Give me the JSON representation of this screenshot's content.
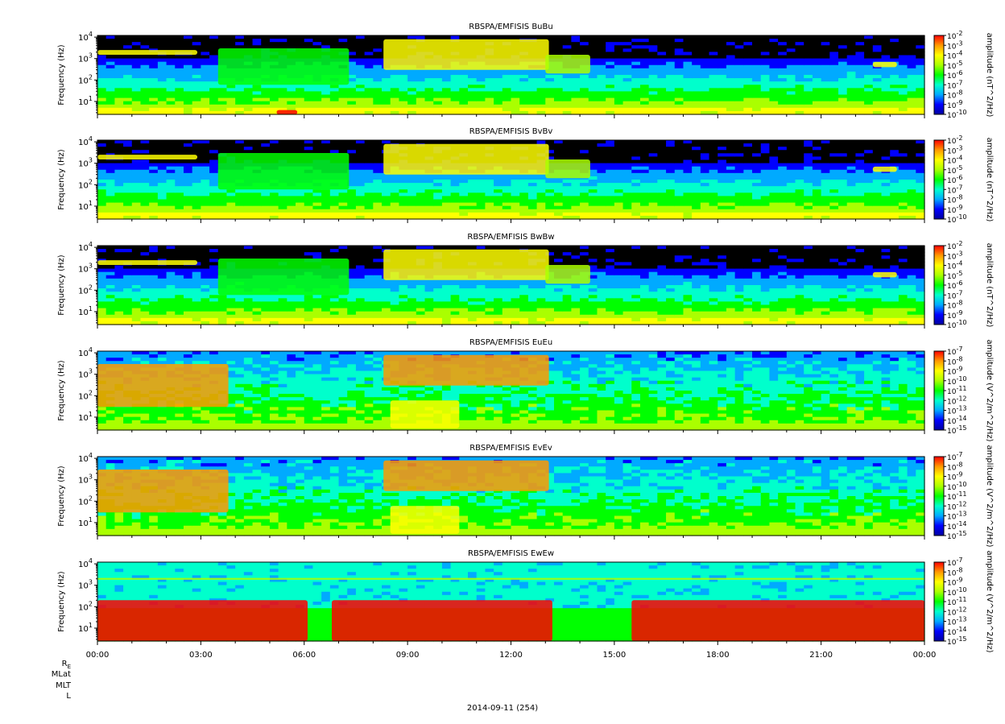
{
  "chart_data": [
    {
      "type": "heatmap",
      "title": "RBSPA/EMFISIS  BuBu",
      "ylabel": "Frequency (Hz)",
      "yscale": "log",
      "ylim": [
        2.5,
        12000
      ],
      "yticks": [
        "10^1",
        "10^2",
        "10^3",
        "10^4"
      ],
      "colorbar_label": "amplitude (nT^2/Hz)",
      "colorbar_ticks": [
        "10^-2",
        "10^-3",
        "10^-4",
        "10^-5",
        "10^-6",
        "10^-7",
        "10^-8",
        "10^-9",
        "10^-10"
      ],
      "colorbar_range_exp": [
        -10,
        -2
      ],
      "features": [
        {
          "t": [
            0.0,
            2.9
          ],
          "f": [
            1500,
            2500
          ],
          "level": 0.72
        },
        {
          "t": [
            3.5,
            7.3
          ],
          "f": [
            60,
            3000
          ],
          "level": 0.55
        },
        {
          "t": [
            8.3,
            13.1
          ],
          "f": [
            300,
            8000
          ],
          "level": 0.75
        },
        {
          "t": [
            13.0,
            14.3
          ],
          "f": [
            200,
            1500
          ],
          "level": 0.62
        },
        {
          "t": [
            22.5,
            23.2
          ],
          "f": [
            400,
            700
          ],
          "level": 0.72
        },
        {
          "t": [
            5.2,
            5.8
          ],
          "f": [
            2.5,
            4
          ],
          "level": 0.95
        }
      ]
    },
    {
      "type": "heatmap",
      "title": "RBSPA/EMFISIS  BvBv",
      "ylabel": "Frequency (Hz)",
      "yscale": "log",
      "ylim": [
        2.5,
        12000
      ],
      "yticks": [
        "10^1",
        "10^2",
        "10^3",
        "10^4"
      ],
      "colorbar_label": "amplitude (nT^2/Hz)",
      "colorbar_ticks": [
        "10^-2",
        "10^-3",
        "10^-4",
        "10^-5",
        "10^-6",
        "10^-7",
        "10^-8",
        "10^-9",
        "10^-10"
      ],
      "colorbar_range_exp": [
        -10,
        -2
      ],
      "features": [
        {
          "t": [
            0.0,
            2.9
          ],
          "f": [
            1500,
            2500
          ],
          "level": 0.72
        },
        {
          "t": [
            3.5,
            7.3
          ],
          "f": [
            60,
            3000
          ],
          "level": 0.55
        },
        {
          "t": [
            8.3,
            13.1
          ],
          "f": [
            300,
            8000
          ],
          "level": 0.75
        },
        {
          "t": [
            13.0,
            14.3
          ],
          "f": [
            200,
            1500
          ],
          "level": 0.62
        },
        {
          "t": [
            22.5,
            23.2
          ],
          "f": [
            400,
            700
          ],
          "level": 0.72
        }
      ]
    },
    {
      "type": "heatmap",
      "title": "RBSPA/EMFISIS  BwBw",
      "ylabel": "Frequency (Hz)",
      "yscale": "log",
      "ylim": [
        2.5,
        12000
      ],
      "yticks": [
        "10^1",
        "10^2",
        "10^3",
        "10^4"
      ],
      "colorbar_label": "amplitude (nT^2/Hz)",
      "colorbar_ticks": [
        "10^-2",
        "10^-3",
        "10^-4",
        "10^-5",
        "10^-6",
        "10^-7",
        "10^-8",
        "10^-9",
        "10^-10"
      ],
      "colorbar_range_exp": [
        -10,
        -2
      ],
      "features": [
        {
          "t": [
            0.0,
            2.9
          ],
          "f": [
            1500,
            2500
          ],
          "level": 0.72
        },
        {
          "t": [
            3.5,
            7.3
          ],
          "f": [
            60,
            3000
          ],
          "level": 0.55
        },
        {
          "t": [
            8.3,
            13.1
          ],
          "f": [
            300,
            8000
          ],
          "level": 0.75
        },
        {
          "t": [
            13.0,
            14.3
          ],
          "f": [
            200,
            1500
          ],
          "level": 0.62
        },
        {
          "t": [
            22.5,
            23.2
          ],
          "f": [
            400,
            700
          ],
          "level": 0.72
        }
      ]
    },
    {
      "type": "heatmap",
      "title": "RBSPA/EMFISIS  EuEu",
      "ylabel": "Frequency (Hz)",
      "yscale": "log",
      "ylim": [
        2.5,
        12000
      ],
      "yticks": [
        "10^1",
        "10^2",
        "10^3",
        "10^4"
      ],
      "colorbar_label": "amplitude (V^2/m^2/Hz)",
      "colorbar_ticks": [
        "10^-7",
        "10^-8",
        "10^-9",
        "10^-10",
        "10^-11",
        "10^-12",
        "10^-13",
        "10^-14",
        "10^-15"
      ],
      "colorbar_range_exp": [
        -15,
        -7
      ],
      "features": [
        {
          "t": [
            0.0,
            3.8
          ],
          "f": [
            30,
            3000
          ],
          "level": 0.8
        },
        {
          "t": [
            8.3,
            13.1
          ],
          "f": [
            300,
            8000
          ],
          "level": 0.85
        },
        {
          "t": [
            8.5,
            10.5
          ],
          "f": [
            3,
            60
          ],
          "level": 0.75
        }
      ]
    },
    {
      "type": "heatmap",
      "title": "RBSPA/EMFISIS  EvEv",
      "ylabel": "Frequency (Hz)",
      "yscale": "log",
      "ylim": [
        2.5,
        12000
      ],
      "yticks": [
        "10^1",
        "10^2",
        "10^3",
        "10^4"
      ],
      "colorbar_label": "amplitude (V^2/m^2/Hz)",
      "colorbar_ticks": [
        "10^-7",
        "10^-8",
        "10^-9",
        "10^-10",
        "10^-11",
        "10^-12",
        "10^-13",
        "10^-14",
        "10^-15"
      ],
      "colorbar_range_exp": [
        -15,
        -7
      ],
      "features": [
        {
          "t": [
            0.0,
            3.8
          ],
          "f": [
            30,
            3000
          ],
          "level": 0.8
        },
        {
          "t": [
            8.3,
            13.1
          ],
          "f": [
            300,
            8000
          ],
          "level": 0.85
        },
        {
          "t": [
            8.5,
            10.5
          ],
          "f": [
            3,
            60
          ],
          "level": 0.75
        }
      ]
    },
    {
      "type": "heatmap",
      "title": "RBSPA/EMFISIS  EwEw",
      "ylabel": "Frequency (Hz)",
      "yscale": "log",
      "ylim": [
        2.5,
        12000
      ],
      "yticks": [
        "10^1",
        "10^2",
        "10^3",
        "10^4"
      ],
      "colorbar_label": "amplitude (V^2/m^2/Hz)",
      "colorbar_ticks": [
        "10^-7",
        "10^-8",
        "10^-9",
        "10^-10",
        "10^-11",
        "10^-12",
        "10^-13",
        "10^-14",
        "10^-15"
      ],
      "colorbar_range_exp": [
        -15,
        -7
      ],
      "features": [
        {
          "t": [
            0.0,
            6.1
          ],
          "f": [
            2.5,
            200
          ],
          "level": 0.97
        },
        {
          "t": [
            6.8,
            13.2
          ],
          "f": [
            2.5,
            200
          ],
          "level": 0.97
        },
        {
          "t": [
            15.5,
            24.0
          ],
          "f": [
            2.5,
            200
          ],
          "level": 0.97
        },
        {
          "t": [
            0.0,
            24.0
          ],
          "f": [
            1800,
            2200
          ],
          "level": 0.65
        }
      ]
    }
  ],
  "x_axis": {
    "tick_labels": [
      "00:00",
      "03:00",
      "06:00",
      "09:00",
      "12:00",
      "15:00",
      "18:00",
      "21:00",
      "00:00"
    ],
    "range_hours": [
      0,
      24
    ]
  },
  "orbit_rows": [
    "R_E",
    "MLat",
    "MLT",
    "L"
  ],
  "date_label": "2014-09-11 (254)",
  "colorscale": [
    "#0000a0",
    "#0000ff",
    "#00aaff",
    "#00ffcc",
    "#00ff00",
    "#aaff00",
    "#ffff00",
    "#ff9900",
    "#ff0000"
  ],
  "no_data_color": "#000000"
}
